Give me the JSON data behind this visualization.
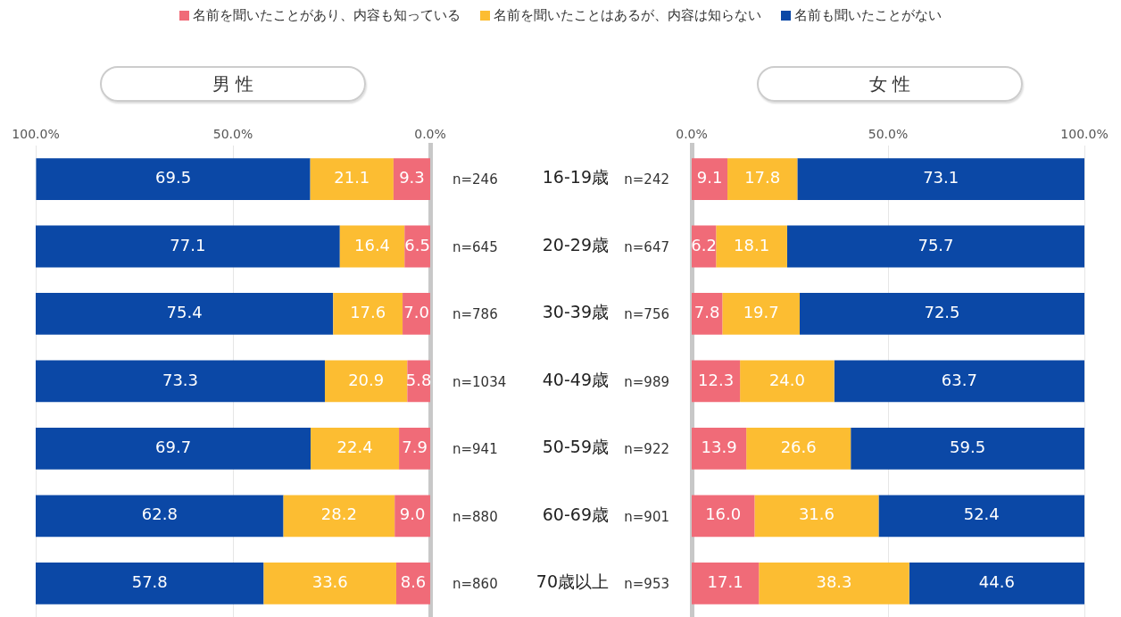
{
  "chart_data": [
    {
      "type": "bar",
      "title": "男 性",
      "orientation": "horizontal",
      "stacked": true,
      "legend": "top",
      "grid": "x",
      "tick_labels": "x",
      "categories": [
        null,
        null,
        null,
        null,
        null,
        null,
        null
      ],
      "xlim": [
        100,
        0
      ],
      "xticks": [
        {
          "value": 100,
          "label": "100.0%"
        },
        {
          "value": 50,
          "label": "50.0%"
        },
        {
          "value": 0,
          "label": "0.0%"
        }
      ],
      "series": [
        {
          "name": "名前を聞いたことがあり、内容も知っている",
          "color": "#f06b78",
          "values": [
            9.3,
            6.5,
            7.0,
            5.8,
            7.9,
            9.0,
            8.6
          ],
          "value_labels": [
            "9.3",
            "6.5",
            "7.0",
            "5.8",
            "7.9",
            "9.0",
            "8.6"
          ]
        },
        {
          "name": "名前を聞いたことはあるが、内容は知らない",
          "color": "#fcbd32",
          "values": [
            21.1,
            16.4,
            17.6,
            20.9,
            22.4,
            28.2,
            33.6
          ],
          "value_labels": [
            "21.1",
            "16.4",
            "17.6",
            "20.9",
            "22.4",
            "28.2",
            "33.6"
          ]
        },
        {
          "name": "名前も聞いたことがない",
          "color": "#0b48a6",
          "values": [
            69.5,
            77.1,
            75.4,
            73.3,
            69.7,
            62.8,
            57.8
          ],
          "value_labels": [
            "69.5",
            "77.1",
            "75.4",
            "73.3",
            "69.7",
            "62.8",
            "57.8"
          ]
        }
      ],
      "annotations": [
        "n=246",
        "n=645",
        "n=786",
        "n=1034",
        "n=941",
        "n=880",
        "n=860"
      ]
    },
    {
      "type": "bar",
      "title": "女 性",
      "orientation": "horizontal",
      "stacked": true,
      "grid": "x",
      "categories": [
        "16-19歳",
        "20-29歳",
        "30-39歳",
        "40-49歳",
        "50-59歳",
        "60-69歳",
        "70歳以上"
      ],
      "xlim": [
        0,
        100
      ],
      "xticks": [
        {
          "value": 0,
          "label": "0.0%"
        },
        {
          "value": 50,
          "label": "50.0%"
        },
        {
          "value": 100,
          "label": "100.0%"
        }
      ],
      "series": [
        {
          "color": "#f06b78",
          "values": [
            9.1,
            6.2,
            7.8,
            12.3,
            13.9,
            16.0,
            17.1
          ],
          "value_labels": [
            "9.1",
            "6.2",
            "7.8",
            "12.3",
            "13.9",
            "16.0",
            "17.1"
          ]
        },
        {
          "color": "#fcbd32",
          "values": [
            17.8,
            18.1,
            19.7,
            24.0,
            26.6,
            31.6,
            38.3
          ],
          "value_labels": [
            "17.8",
            "18.1",
            "19.7",
            "24.0",
            "26.6",
            "31.6",
            "38.3"
          ]
        },
        {
          "color": "#0b48a6",
          "values": [
            73.1,
            75.7,
            72.5,
            63.7,
            59.5,
            52.4,
            44.6
          ],
          "value_labels": [
            "73.1",
            "75.7",
            "72.5",
            "63.7",
            "59.5",
            "52.4",
            "44.6"
          ]
        }
      ],
      "annotations": [
        "n=242",
        "n=647",
        "n=756",
        "n=989",
        "n=922",
        "n=901",
        "n=953"
      ]
    }
  ]
}
